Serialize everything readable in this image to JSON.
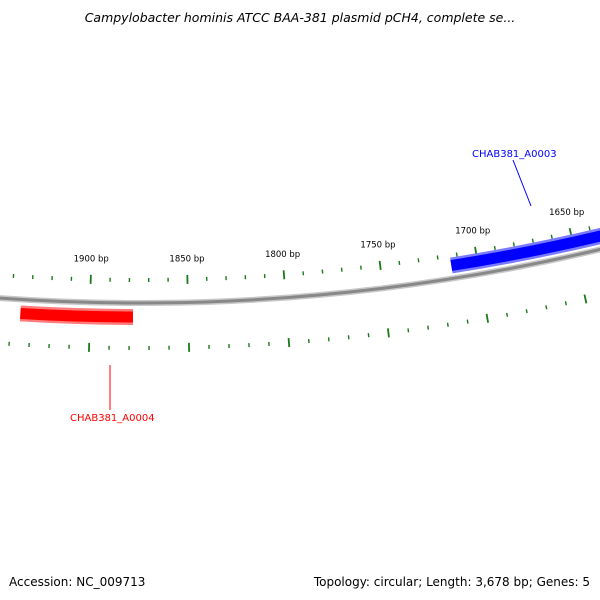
{
  "title": "Campylobacter hominis ATCC BAA-381 plasmid pCH4, complete se...",
  "footer": {
    "accession": "Accession: NC_009713",
    "summary": "Topology: circular; Length: 3,678 bp; Genes: 5"
  },
  "map": {
    "ticks": {
      "major_labels": [
        "1650 bp",
        "1700 bp",
        "1750 bp",
        "1800 bp",
        "1850 bp",
        "1900 bp"
      ]
    },
    "genes": [
      {
        "id": "CHAB381_A0003",
        "strand": "forward",
        "color": "#0000ff"
      },
      {
        "id": "CHAB381_A0004",
        "strand": "reverse",
        "color": "#ff0000"
      }
    ],
    "colors": {
      "backbone": "#888888",
      "ticks": "#1a7a1a",
      "forward_gene": "#0000ff",
      "reverse_gene": "#ff0000"
    }
  }
}
